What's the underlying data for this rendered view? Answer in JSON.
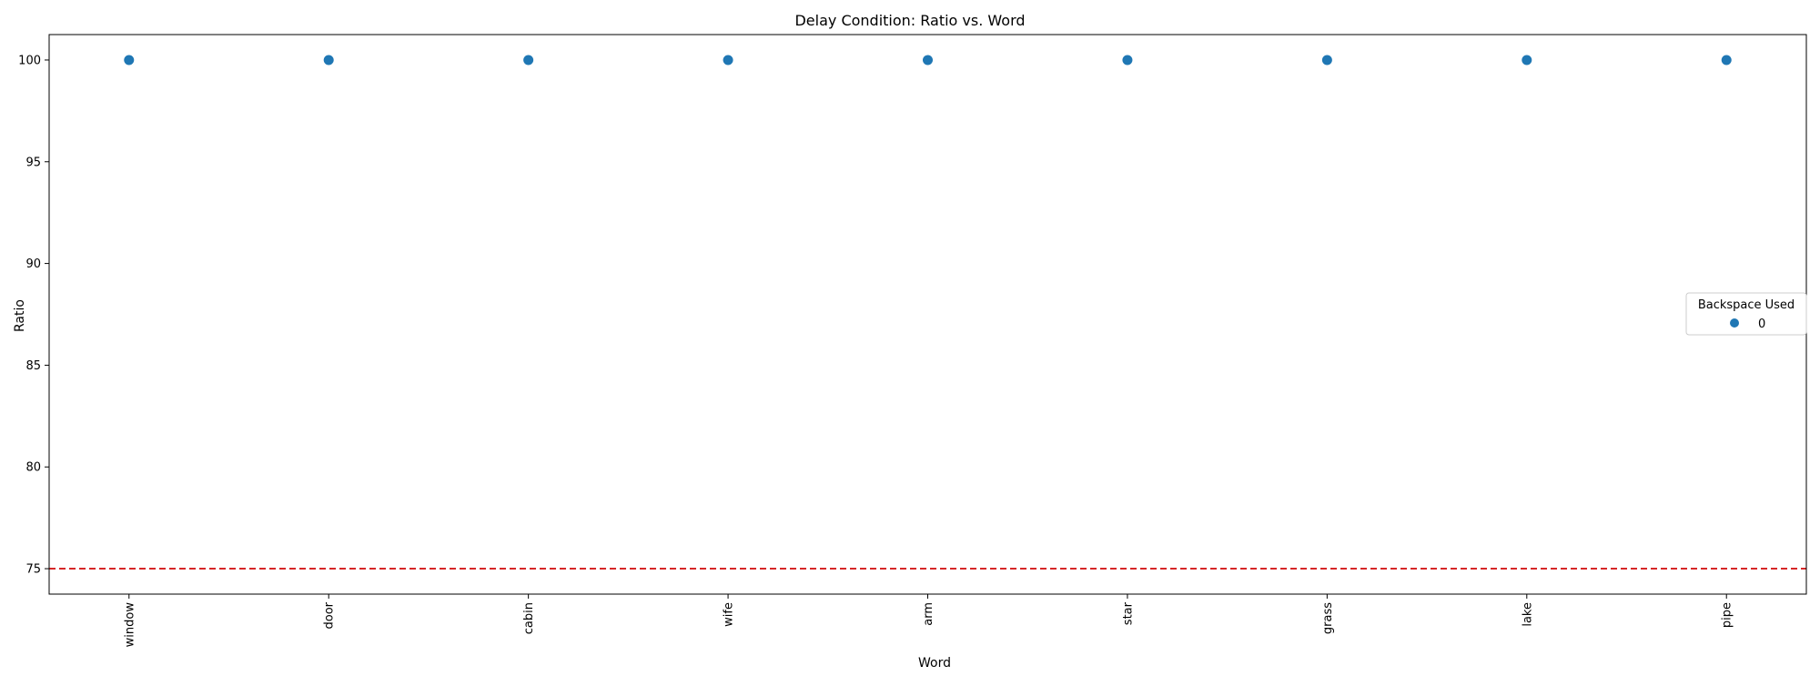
{
  "chart_data": {
    "type": "scatter",
    "title": "Delay Condition: Ratio vs. Word",
    "xlabel": "Word",
    "ylabel": "Ratio",
    "categories": [
      "window",
      "door",
      "cabin",
      "wife",
      "arm",
      "star",
      "grass",
      "lake",
      "pipe"
    ],
    "series": [
      {
        "name": "0",
        "values": [
          100,
          100,
          100,
          100,
          100,
          100,
          100,
          100,
          100
        ],
        "color": "#1f77b4"
      }
    ],
    "ylim": [
      73.75,
      101.25
    ],
    "yticks": [
      75,
      80,
      85,
      90,
      95,
      100
    ],
    "reference_line": {
      "y": 75,
      "color": "#d62728",
      "style": "dashed"
    },
    "legend": {
      "title": "Backspace Used",
      "placement": "center-right"
    },
    "grid": false
  }
}
